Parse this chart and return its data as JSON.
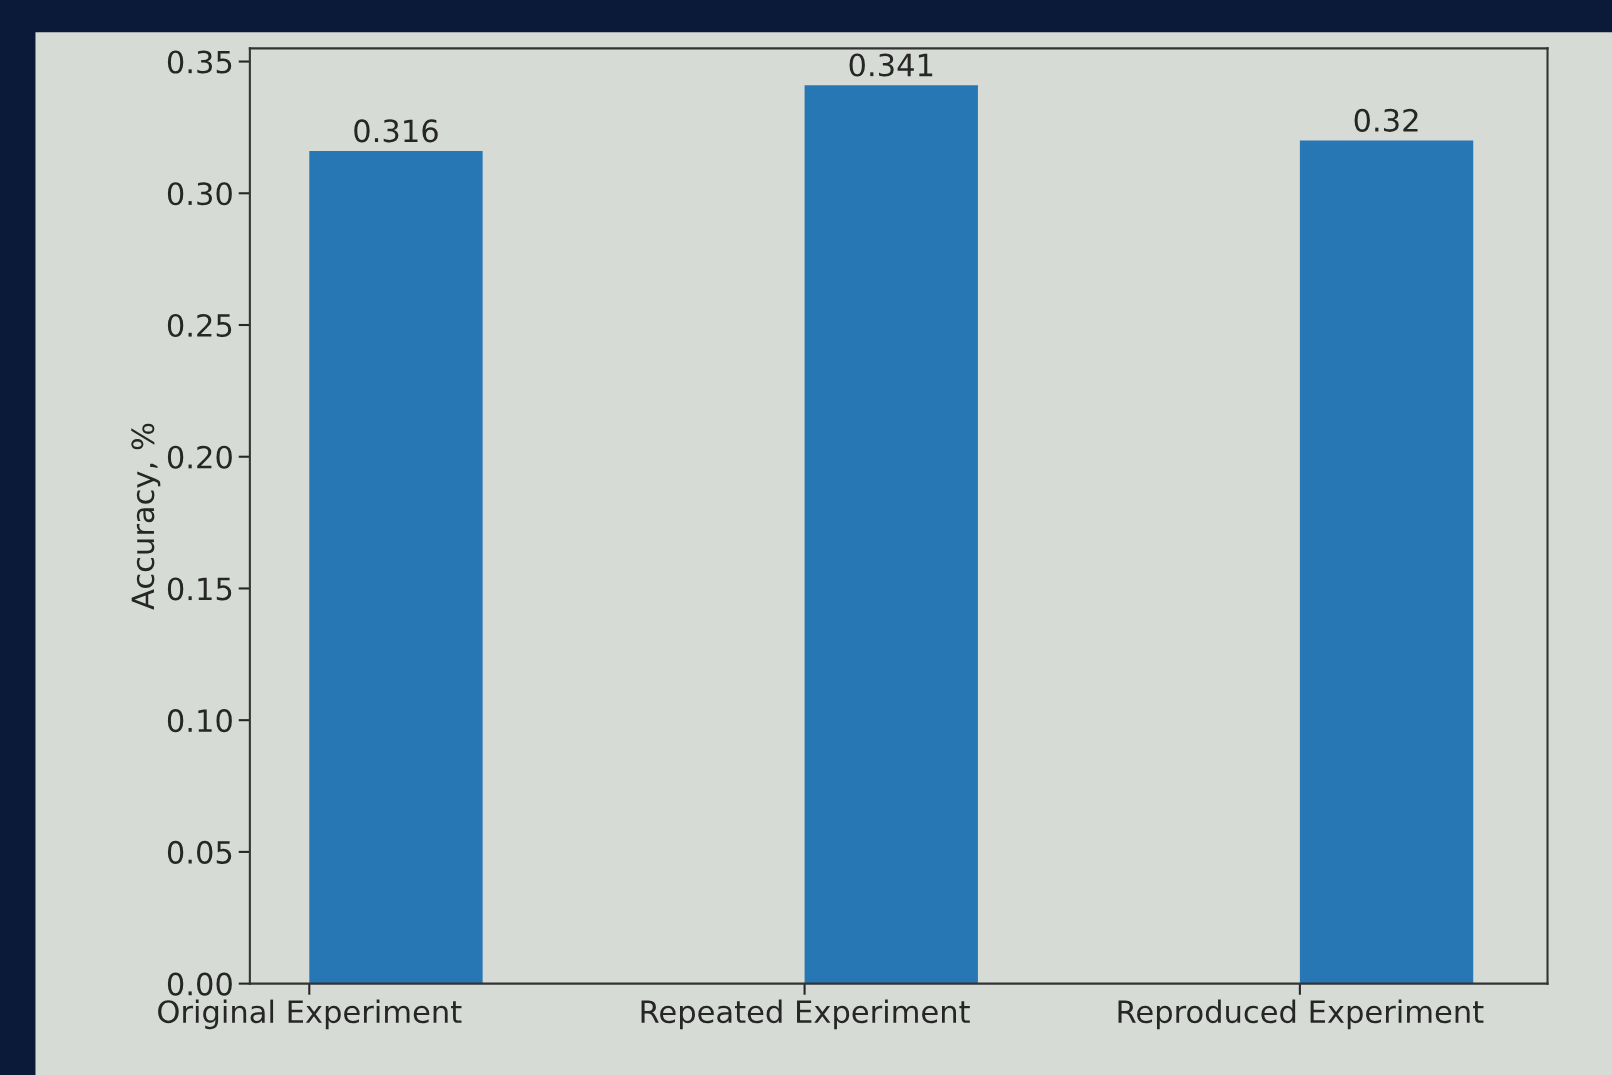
{
  "chart_data": {
    "type": "bar",
    "ylabel": "Accuracy, %",
    "categories": [
      "Original Experiment",
      "Repeated Experiment",
      "Reproduced Experiment"
    ],
    "values": [
      0.316,
      0.341,
      0.32
    ],
    "color": "#2777b4",
    "ylim": [
      0,
      0.355
    ],
    "yticks": [
      {
        "value": 0,
        "label": "0.00"
      },
      0.05,
      {
        "value": 0.1,
        "label": "0.10"
      },
      0.15,
      {
        "value": 0.2,
        "label": "0.20"
      },
      0.25,
      {
        "value": 0.3,
        "label": "0.30"
      },
      0.35
    ],
    "data_labels": true,
    "grid": false,
    "legend": false
  }
}
